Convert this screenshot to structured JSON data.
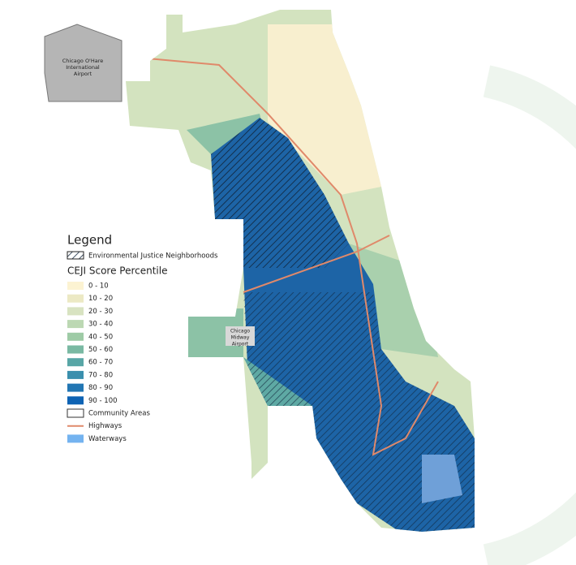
{
  "airports": [
    {
      "lines": [
        "Chicago O'Hare",
        "International",
        "Airport"
      ]
    },
    {
      "lines": [
        "Chicago",
        "Midway",
        "Airport"
      ]
    }
  ],
  "legend": {
    "title": "Legend",
    "hatch_label": "Environmental Justice Neighborhoods",
    "scale_title": "CEJI Score Percentile",
    "classes": [
      {
        "label": "0 - 10",
        "color": "#fcf3d2"
      },
      {
        "label": "10 - 20",
        "color": "#ece9c4"
      },
      {
        "label": "20 - 30",
        "color": "#d8e3c1"
      },
      {
        "label": "30 - 40",
        "color": "#bcd8b3"
      },
      {
        "label": "40 - 50",
        "color": "#9ecba6"
      },
      {
        "label": "50 - 60",
        "color": "#7ab9a3"
      },
      {
        "label": "60 - 70",
        "color": "#58a6a6"
      },
      {
        "label": "70 - 80",
        "color": "#3a8fad"
      },
      {
        "label": "80 - 90",
        "color": "#2276b3"
      },
      {
        "label": "90 - 100",
        "color": "#0e63b4"
      }
    ],
    "other": [
      {
        "label": "Community Areas",
        "kind": "outline"
      },
      {
        "label": "Highways",
        "kind": "line",
        "color": "#e0896a"
      },
      {
        "label": "Waterways",
        "kind": "fill",
        "color": "#74b3f0"
      }
    ]
  }
}
